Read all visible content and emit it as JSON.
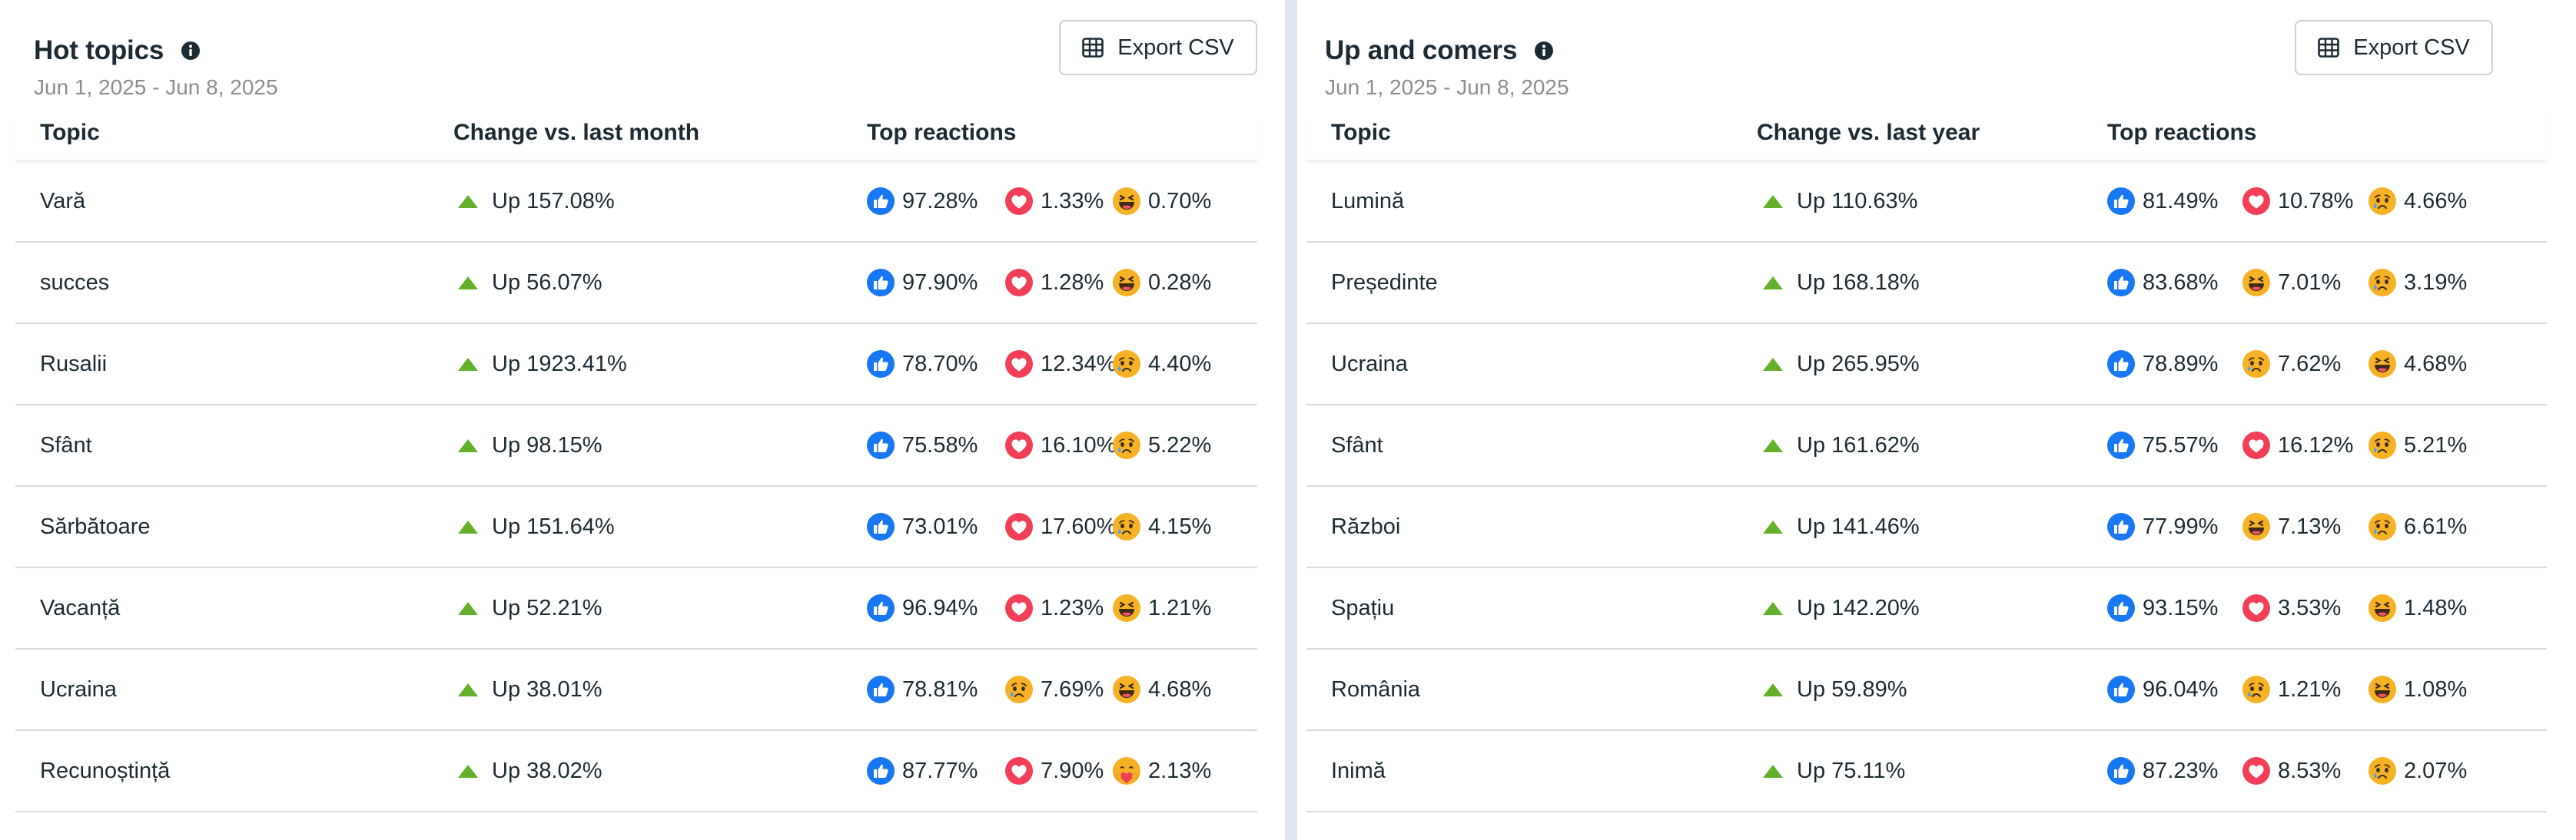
{
  "left": {
    "title": "Hot topics",
    "date_range": "Jun 1, 2025 - Jun 8, 2025",
    "export_label": "Export CSV",
    "columns": [
      "Topic",
      "Change vs. last month",
      "Top reactions"
    ],
    "rows": [
      {
        "topic": "Vară",
        "change": "Up 157.08%",
        "reactions": [
          {
            "icon": "like-icon",
            "value": "97.28%"
          },
          {
            "icon": "love-icon",
            "value": "1.33%"
          },
          {
            "icon": "haha-icon",
            "value": "0.70%"
          }
        ]
      },
      {
        "topic": "succes",
        "change": "Up 56.07%",
        "reactions": [
          {
            "icon": "like-icon",
            "value": "97.90%"
          },
          {
            "icon": "love-icon",
            "value": "1.28%"
          },
          {
            "icon": "haha-icon",
            "value": "0.28%"
          }
        ]
      },
      {
        "topic": "Rusalii",
        "change": "Up 1923.41%",
        "reactions": [
          {
            "icon": "like-icon",
            "value": "78.70%"
          },
          {
            "icon": "love-icon",
            "value": "12.34%"
          },
          {
            "icon": "sad-icon",
            "value": "4.40%"
          }
        ]
      },
      {
        "topic": "Sfânt",
        "change": "Up 98.15%",
        "reactions": [
          {
            "icon": "like-icon",
            "value": "75.58%"
          },
          {
            "icon": "love-icon",
            "value": "16.10%"
          },
          {
            "icon": "sad-icon",
            "value": "5.22%"
          }
        ]
      },
      {
        "topic": "Sărbătoare",
        "change": "Up 151.64%",
        "reactions": [
          {
            "icon": "like-icon",
            "value": "73.01%"
          },
          {
            "icon": "love-icon",
            "value": "17.60%"
          },
          {
            "icon": "sad-icon",
            "value": "4.15%"
          }
        ]
      },
      {
        "topic": "Vacanță",
        "change": "Up 52.21%",
        "reactions": [
          {
            "icon": "like-icon",
            "value": "96.94%"
          },
          {
            "icon": "love-icon",
            "value": "1.23%"
          },
          {
            "icon": "haha-icon",
            "value": "1.21%"
          }
        ]
      },
      {
        "topic": "Ucraina",
        "change": "Up 38.01%",
        "reactions": [
          {
            "icon": "like-icon",
            "value": "78.81%"
          },
          {
            "icon": "sad-icon",
            "value": "7.69%"
          },
          {
            "icon": "haha-icon",
            "value": "4.68%"
          }
        ]
      },
      {
        "topic": "Recunoștință",
        "change": "Up 38.02%",
        "reactions": [
          {
            "icon": "like-icon",
            "value": "87.77%"
          },
          {
            "icon": "love-icon",
            "value": "7.90%"
          },
          {
            "icon": "care-icon",
            "value": "2.13%"
          }
        ]
      }
    ]
  },
  "right": {
    "title": "Up and comers",
    "date_range": "Jun 1, 2025 - Jun 8, 2025",
    "export_label": "Export CSV",
    "columns": [
      "Topic",
      "Change vs. last year",
      "Top reactions"
    ],
    "rows": [
      {
        "topic": "Lumină",
        "change": "Up 110.63%",
        "reactions": [
          {
            "icon": "like-icon",
            "value": "81.49%"
          },
          {
            "icon": "love-icon",
            "value": "10.78%"
          },
          {
            "icon": "sad-icon",
            "value": "4.66%"
          }
        ]
      },
      {
        "topic": "Președinte",
        "change": "Up 168.18%",
        "reactions": [
          {
            "icon": "like-icon",
            "value": "83.68%"
          },
          {
            "icon": "haha-icon",
            "value": "7.01%"
          },
          {
            "icon": "sad-icon",
            "value": "3.19%"
          }
        ]
      },
      {
        "topic": "Ucraina",
        "change": "Up 265.95%",
        "reactions": [
          {
            "icon": "like-icon",
            "value": "78.89%"
          },
          {
            "icon": "sad-icon",
            "value": "7.62%"
          },
          {
            "icon": "haha-icon",
            "value": "4.68%"
          }
        ]
      },
      {
        "topic": "Sfânt",
        "change": "Up 161.62%",
        "reactions": [
          {
            "icon": "like-icon",
            "value": "75.57%"
          },
          {
            "icon": "love-icon",
            "value": "16.12%"
          },
          {
            "icon": "sad-icon",
            "value": "5.21%"
          }
        ]
      },
      {
        "topic": "Război",
        "change": "Up 141.46%",
        "reactions": [
          {
            "icon": "like-icon",
            "value": "77.99%"
          },
          {
            "icon": "haha-icon",
            "value": "7.13%"
          },
          {
            "icon": "sad-icon",
            "value": "6.61%"
          }
        ]
      },
      {
        "topic": "Spațiu",
        "change": "Up 142.20%",
        "reactions": [
          {
            "icon": "like-icon",
            "value": "93.15%"
          },
          {
            "icon": "love-icon",
            "value": "3.53%"
          },
          {
            "icon": "haha-icon",
            "value": "1.48%"
          }
        ]
      },
      {
        "topic": "România",
        "change": "Up 59.89%",
        "reactions": [
          {
            "icon": "like-icon",
            "value": "96.04%"
          },
          {
            "icon": "sad-icon",
            "value": "1.21%"
          },
          {
            "icon": "haha-icon",
            "value": "1.08%"
          }
        ]
      },
      {
        "topic": "Inimă",
        "change": "Up 75.11%",
        "reactions": [
          {
            "icon": "like-icon",
            "value": "87.23%"
          },
          {
            "icon": "love-icon",
            "value": "8.53%"
          },
          {
            "icon": "sad-icon",
            "value": "2.07%"
          }
        ]
      }
    ]
  },
  "colors": {
    "like": "#1877f2",
    "love": "#f33e58",
    "emoji_yellow": "#f7b125",
    "up_arrow": "#63b12a",
    "divider": "#dfe7f1"
  }
}
